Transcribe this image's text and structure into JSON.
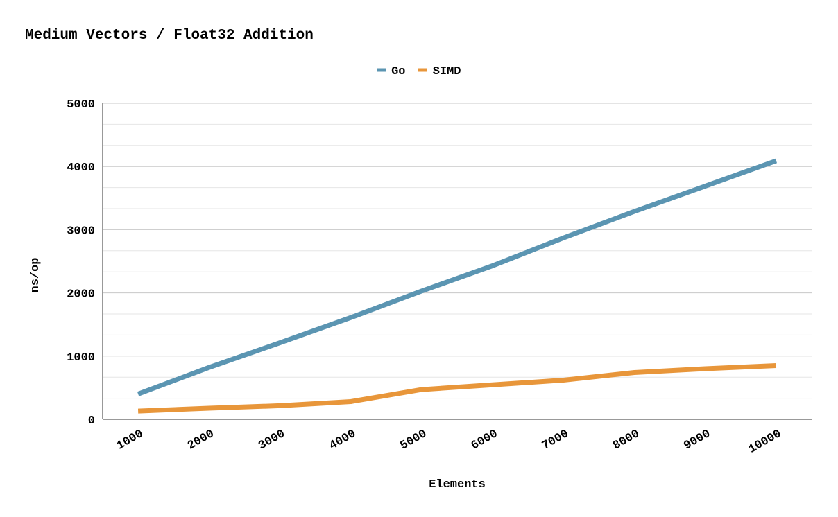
{
  "chart_data": {
    "type": "line",
    "title": "Medium Vectors / Float32 Addition",
    "xlabel": "Elements",
    "ylabel": "ns/op",
    "categories": [
      "1000",
      "2000",
      "3000",
      "4000",
      "5000",
      "6000",
      "7000",
      "8000",
      "9000",
      "10000"
    ],
    "ylim": [
      0,
      5000
    ],
    "yticks": [
      "0",
      "1000",
      "2000",
      "3000",
      "4000",
      "5000"
    ],
    "legend_position": "top-center",
    "grid": true,
    "series": [
      {
        "name": "Go",
        "color": "#5b95b2",
        "values": [
          400,
          820,
          1210,
          1610,
          2030,
          2430,
          2870,
          3290,
          3690,
          4090
        ]
      },
      {
        "name": "SIMD",
        "color": "#e8963a",
        "values": [
          130,
          175,
          215,
          280,
          470,
          545,
          620,
          740,
          800,
          850
        ]
      }
    ]
  }
}
